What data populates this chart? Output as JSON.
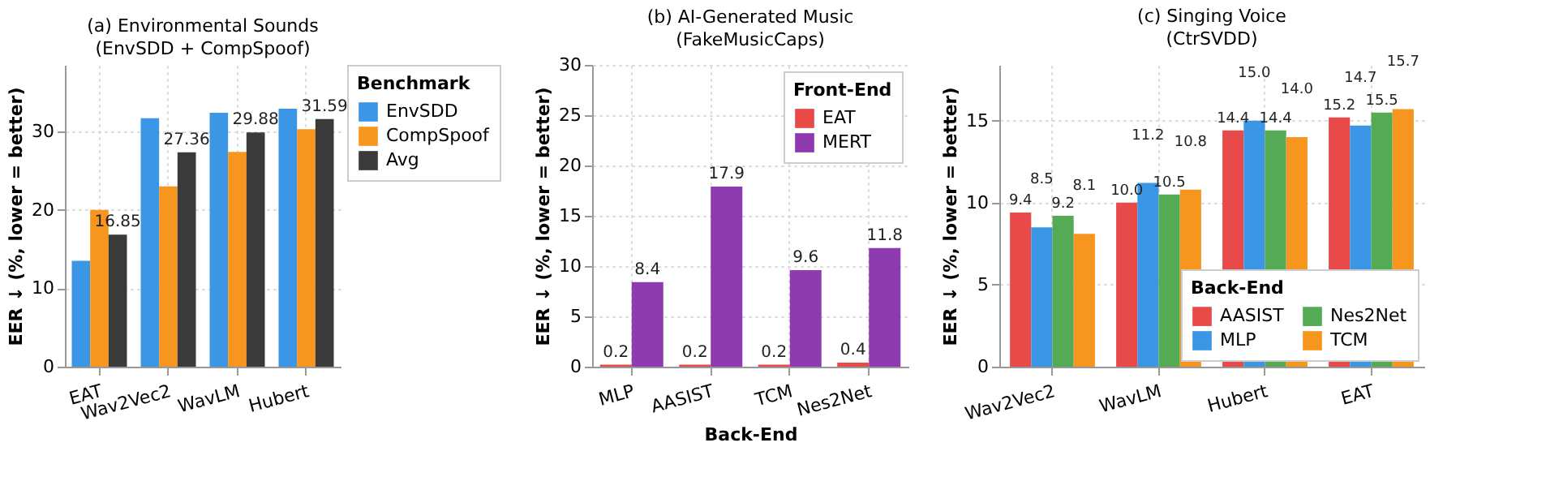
{
  "chart_data": [
    {
      "type": "bar",
      "title": "(a) Environmental Sounds",
      "subtitle": "(EnvSDD + CompSpoof)",
      "ylabel": "EER ↓ (%, lower = better)",
      "categories": [
        "EAT",
        "Wav2Vec2",
        "WavLM",
        "Hubert"
      ],
      "ylim": [
        0,
        38.5
      ],
      "yticks": [
        0,
        10,
        20,
        30
      ],
      "grid": true,
      "legend": "right",
      "legend_title": "Benchmark",
      "series": [
        {
          "name": "EnvSDD",
          "color": "#3b96e6",
          "values": [
            13.5,
            31.7,
            32.4,
            32.9
          ]
        },
        {
          "name": "CompSpoof",
          "color": "#f7961e",
          "values": [
            20.0,
            23.0,
            27.4,
            30.3
          ]
        },
        {
          "name": "Avg",
          "color": "#3a3a3a",
          "values": [
            16.85,
            27.36,
            29.88,
            31.59
          ],
          "value_labels": [
            "16.85",
            "27.36",
            "29.88",
            "31.59"
          ]
        }
      ]
    },
    {
      "type": "bar",
      "title": "(b) AI-Generated Music",
      "subtitle": "(FakeMusicCaps)",
      "ylabel": "EER ↓ (%, lower = better)",
      "xlabel": "Back-End",
      "categories": [
        "MLP",
        "AASIST",
        "TCM",
        "Nes2Net"
      ],
      "ylim": [
        0,
        30
      ],
      "yticks": [
        0,
        5,
        10,
        15,
        20,
        25,
        30
      ],
      "grid": true,
      "legend": "top right",
      "legend_title": "Front-End",
      "series": [
        {
          "name": "EAT",
          "color": "#e84a4a",
          "values": [
            0.2,
            0.2,
            0.2,
            0.4
          ],
          "value_labels": [
            "0.2",
            "0.2",
            "0.2",
            "0.4"
          ]
        },
        {
          "name": "MERT",
          "color": "#8e3bb0",
          "values": [
            8.4,
            17.9,
            9.6,
            11.8
          ],
          "value_labels": [
            "8.4",
            "17.9",
            "9.6",
            "11.8"
          ]
        }
      ]
    },
    {
      "type": "bar",
      "title": "(c) Singing Voice",
      "subtitle": "(CtrSVDD)",
      "ylabel": "EER ↓ (%, lower = better)",
      "categories": [
        "Wav2Vec2",
        "WavLM",
        "Hubert",
        "EAT"
      ],
      "ylim": [
        0,
        18.4
      ],
      "yticks": [
        0,
        5,
        10,
        15
      ],
      "grid": true,
      "legend": "bottom right",
      "legend_title": "Back-End",
      "series": [
        {
          "name": "AASIST",
          "color": "#e84a4a",
          "values": [
            9.4,
            10.0,
            14.4,
            15.2
          ],
          "value_labels": [
            "9.4",
            "10.0",
            "14.4",
            "15.2"
          ]
        },
        {
          "name": "MLP",
          "color": "#3b96e6",
          "values": [
            8.5,
            11.2,
            15.0,
            14.7
          ],
          "value_labels": [
            "8.5",
            "11.2",
            "15.0",
            "14.7"
          ]
        },
        {
          "name": "Nes2Net",
          "color": "#55ab55",
          "values": [
            9.2,
            10.5,
            14.4,
            15.5
          ],
          "value_labels": [
            "9.2",
            "10.5",
            "14.4",
            "15.5"
          ]
        },
        {
          "name": "TCM",
          "color": "#f7961e",
          "values": [
            8.1,
            10.8,
            14.0,
            15.7
          ],
          "value_labels": [
            "8.1",
            "10.8",
            "14.0",
            "15.7"
          ]
        }
      ]
    }
  ]
}
